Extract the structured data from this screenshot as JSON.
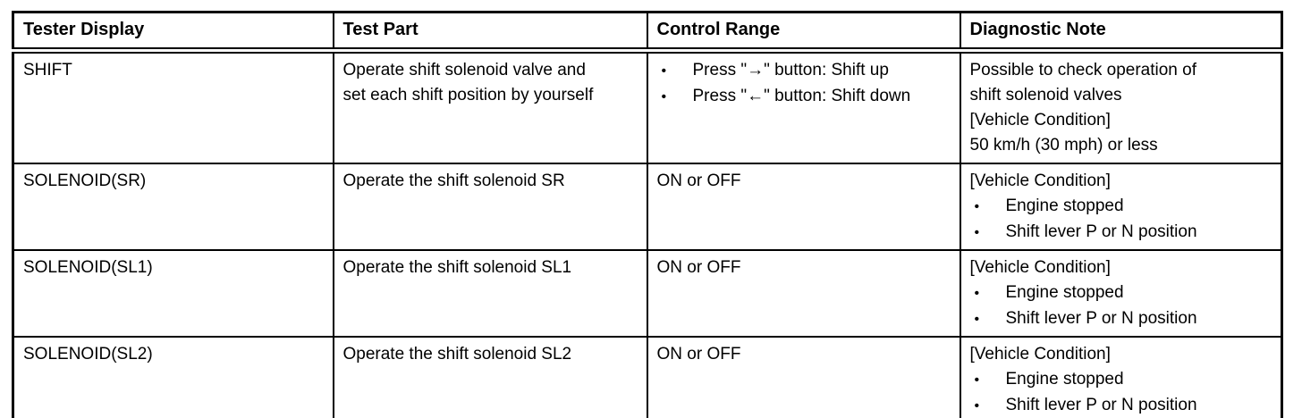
{
  "colors": {
    "border": "#000000",
    "text": "#000000",
    "background": "#ffffff"
  },
  "table": {
    "bullet_glyph": "•",
    "headers": [
      {
        "label": "Tester Display"
      },
      {
        "label": "Test Part"
      },
      {
        "label": "Control Range"
      },
      {
        "label": "Diagnostic Note"
      }
    ],
    "rows": [
      {
        "cells": [
          {
            "lines": [
              {
                "type": "text",
                "text": "SHIFT"
              }
            ]
          },
          {
            "lines": [
              {
                "type": "text",
                "text": "Operate shift solenoid valve and"
              },
              {
                "type": "text",
                "text": "set each shift position by yourself"
              }
            ]
          },
          {
            "lines": [
              {
                "type": "bullet",
                "text": "Press \"→\" button: Shift up"
              },
              {
                "type": "bullet",
                "text": "Press \"←\" button: Shift down"
              }
            ]
          },
          {
            "lines": [
              {
                "type": "text",
                "text": "Possible to check operation of"
              },
              {
                "type": "text",
                "text": "shift solenoid valves"
              },
              {
                "type": "text",
                "text": "[Vehicle Condition]"
              },
              {
                "type": "text",
                "text": "50 km/h (30 mph) or less"
              }
            ]
          }
        ]
      },
      {
        "cells": [
          {
            "lines": [
              {
                "type": "text",
                "text": "SOLENOID(SR)"
              }
            ]
          },
          {
            "lines": [
              {
                "type": "text",
                "text": "Operate the shift solenoid SR"
              }
            ]
          },
          {
            "lines": [
              {
                "type": "text",
                "text": "ON or OFF"
              }
            ]
          },
          {
            "lines": [
              {
                "type": "text",
                "text": "[Vehicle Condition]"
              },
              {
                "type": "bullet",
                "text": "Engine stopped"
              },
              {
                "type": "bullet",
                "text": "Shift lever P or N position"
              }
            ]
          }
        ]
      },
      {
        "cells": [
          {
            "lines": [
              {
                "type": "text",
                "text": "SOLENOID(SL1)"
              }
            ]
          },
          {
            "lines": [
              {
                "type": "text",
                "text": "Operate the shift solenoid SL1"
              }
            ]
          },
          {
            "lines": [
              {
                "type": "text",
                "text": "ON or OFF"
              }
            ]
          },
          {
            "lines": [
              {
                "type": "text",
                "text": "[Vehicle Condition]"
              },
              {
                "type": "bullet",
                "text": "Engine stopped"
              },
              {
                "type": "bullet",
                "text": "Shift lever P or N position"
              }
            ]
          }
        ]
      },
      {
        "cells": [
          {
            "lines": [
              {
                "type": "text",
                "text": "SOLENOID(SL2)"
              }
            ]
          },
          {
            "lines": [
              {
                "type": "text",
                "text": "Operate the shift solenoid SL2"
              }
            ]
          },
          {
            "lines": [
              {
                "type": "text",
                "text": "ON or OFF"
              }
            ]
          },
          {
            "lines": [
              {
                "type": "text",
                "text": "[Vehicle Condition]"
              },
              {
                "type": "bullet",
                "text": "Engine stopped"
              },
              {
                "type": "bullet",
                "text": "Shift lever P or N position"
              }
            ]
          }
        ]
      }
    ]
  }
}
